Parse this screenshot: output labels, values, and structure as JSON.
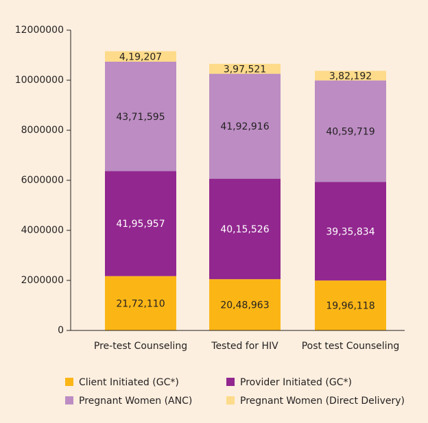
{
  "chart_data": {
    "type": "stacked_bar",
    "categories": [
      "Pre-test Counseling",
      "Tested for HIV",
      "Post test Counseling"
    ],
    "series": [
      {
        "name": "Client Initiated (GC*)",
        "color": "#fbb616",
        "label_color": "#231f20",
        "values": [
          2172110,
          2048963,
          1996118
        ],
        "value_labels": [
          "21,72,110",
          "20,48,963",
          "19,96,118"
        ]
      },
      {
        "name": "Provider Initiated (GC*)",
        "color": "#92278f",
        "label_color": "#ffffff",
        "values": [
          4195957,
          4015526,
          3935834
        ],
        "value_labels": [
          "41,95,957",
          "40,15,526",
          "39,35,834"
        ]
      },
      {
        "name": "Pregnant Women (ANC)",
        "color": "#bc8cc3",
        "label_color": "#231f20",
        "values": [
          4371595,
          4192916,
          4059719
        ],
        "value_labels": [
          "43,71,595",
          "41,92,916",
          "40,59,719"
        ]
      },
      {
        "name": "Pregnant Women (Direct Delivery)",
        "color": "#fddb8a",
        "label_color": "#231f20",
        "values": [
          419207,
          397521,
          382192
        ],
        "value_labels": [
          "4,19,207",
          "3,97,521",
          "3,82,192"
        ]
      }
    ],
    "ylim": [
      0,
      12000000
    ],
    "yticks": [
      0,
      2000000,
      4000000,
      6000000,
      8000000,
      10000000,
      12000000
    ],
    "legend": "bottom"
  }
}
